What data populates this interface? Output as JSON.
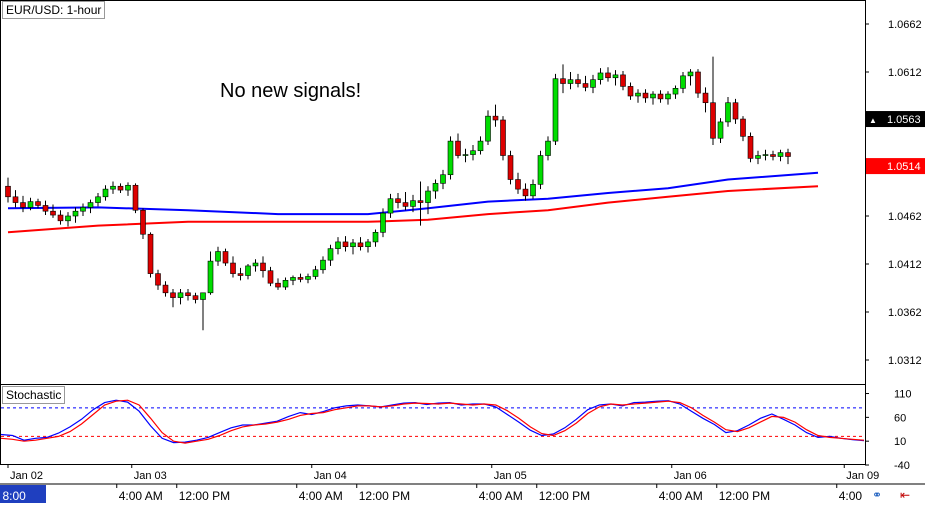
{
  "chart_data": [
    {
      "type": "candlestick",
      "title": "EUR/USD: 1-hour",
      "annotation": "No new signals!",
      "ylim": [
        1.0287,
        1.0687
      ],
      "y_ticks": [
        "1.0662",
        "1.0612",
        "1.0563",
        "1.0514",
        "1.0462",
        "1.0412",
        "1.0362",
        "1.0312"
      ],
      "price_tags": [
        {
          "label": "1.0563",
          "value": 1.0563,
          "color": "#000000"
        },
        {
          "label": "1.0514",
          "value": 1.0514,
          "color": "#ff0000"
        }
      ],
      "up_color": "#00dd00",
      "down_color": "#dd0000",
      "candles": [
        [
          1.0493,
          1.0502,
          1.0476,
          1.0482
        ],
        [
          1.0482,
          1.0489,
          1.0471,
          1.0476
        ],
        [
          1.0476,
          1.0483,
          1.0466,
          1.0471
        ],
        [
          1.0471,
          1.0481,
          1.0468,
          1.0477
        ],
        [
          1.0477,
          1.048,
          1.047,
          1.0473
        ],
        [
          1.0473,
          1.0478,
          1.0463,
          1.0467
        ],
        [
          1.0467,
          1.0474,
          1.046,
          1.0463
        ],
        [
          1.0463,
          1.0468,
          1.0453,
          1.0457
        ],
        [
          1.0457,
          1.0466,
          1.0451,
          1.0462
        ],
        [
          1.0462,
          1.0471,
          1.0455,
          1.0467
        ],
        [
          1.0467,
          1.0475,
          1.0462,
          1.0471
        ],
        [
          1.0471,
          1.0479,
          1.0465,
          1.0476
        ],
        [
          1.0476,
          1.0486,
          1.0472,
          1.0482
        ],
        [
          1.0482,
          1.0494,
          1.0478,
          1.049
        ],
        [
          1.049,
          1.0498,
          1.0485,
          1.0493
        ],
        [
          1.0493,
          1.0496,
          1.0486,
          1.0489
        ],
        [
          1.0489,
          1.0497,
          1.0483,
          1.0494
        ],
        [
          1.0494,
          1.0496,
          1.0465,
          1.0468
        ],
        [
          1.0468,
          1.047,
          1.0438,
          1.0443
        ],
        [
          1.0443,
          1.0445,
          1.0398,
          1.0402
        ],
        [
          1.0402,
          1.0406,
          1.0385,
          1.039
        ],
        [
          1.039,
          1.0394,
          1.0378,
          1.0382
        ],
        [
          1.0382,
          1.0386,
          1.0367,
          1.0377
        ],
        [
          1.0377,
          1.0386,
          1.037,
          1.0382
        ],
        [
          1.0382,
          1.0386,
          1.0374,
          1.0379
        ],
        [
          1.0379,
          1.0382,
          1.0371,
          1.0375
        ],
        [
          1.0375,
          1.0379,
          1.0343,
          1.0382
        ],
        [
          1.0382,
          1.0425,
          1.038,
          1.0415
        ],
        [
          1.0415,
          1.043,
          1.041,
          1.0425
        ],
        [
          1.0425,
          1.0428,
          1.041,
          1.0413
        ],
        [
          1.0413,
          1.042,
          1.0398,
          1.0402
        ],
        [
          1.0402,
          1.0408,
          1.0395,
          1.04
        ],
        [
          1.04,
          1.0412,
          1.0396,
          1.041
        ],
        [
          1.041,
          1.0417,
          1.0404,
          1.0413
        ],
        [
          1.0413,
          1.042,
          1.0398,
          1.0405
        ],
        [
          1.0405,
          1.0409,
          1.0389,
          1.0392
        ],
        [
          1.0392,
          1.0397,
          1.0385,
          1.0388
        ],
        [
          1.0388,
          1.0398,
          1.0385,
          1.0395
        ],
        [
          1.0395,
          1.04,
          1.039,
          1.0398
        ],
        [
          1.0398,
          1.0402,
          1.0393,
          1.0396
        ],
        [
          1.0396,
          1.0402,
          1.0392,
          1.0399
        ],
        [
          1.0399,
          1.041,
          1.0396,
          1.0406
        ],
        [
          1.0406,
          1.042,
          1.0402,
          1.0416
        ],
        [
          1.0416,
          1.0432,
          1.041,
          1.0428
        ],
        [
          1.0428,
          1.044,
          1.0422,
          1.0435
        ],
        [
          1.0435,
          1.0441,
          1.0425,
          1.043
        ],
        [
          1.043,
          1.0438,
          1.0422,
          1.0434
        ],
        [
          1.0434,
          1.044,
          1.0426,
          1.043
        ],
        [
          1.043,
          1.0438,
          1.0424,
          1.0435
        ],
        [
          1.0435,
          1.0448,
          1.043,
          1.0445
        ],
        [
          1.0445,
          1.047,
          1.044,
          1.0465
        ],
        [
          1.0465,
          1.0485,
          1.046,
          1.048
        ],
        [
          1.048,
          1.0486,
          1.047,
          1.0476
        ],
        [
          1.0476,
          1.0487,
          1.0468,
          1.0472
        ],
        [
          1.0472,
          1.0484,
          1.0466,
          1.0478
        ],
        [
          1.0478,
          1.0498,
          1.0452,
          1.0476
        ],
        [
          1.0476,
          1.0493,
          1.0464,
          1.0488
        ],
        [
          1.0488,
          1.05,
          1.048,
          1.0496
        ],
        [
          1.0496,
          1.051,
          1.049,
          1.0505
        ],
        [
          1.0505,
          1.0545,
          1.05,
          1.054
        ],
        [
          1.054,
          1.0548,
          1.0522,
          1.0525
        ],
        [
          1.0525,
          1.0532,
          1.0518,
          1.0526
        ],
        [
          1.0526,
          1.0536,
          1.052,
          1.053
        ],
        [
          1.053,
          1.0545,
          1.0526,
          1.054
        ],
        [
          1.054,
          1.0572,
          1.0536,
          1.0566
        ],
        [
          1.0566,
          1.0578,
          1.0555,
          1.0562
        ],
        [
          1.0562,
          1.0566,
          1.052,
          1.0525
        ],
        [
          1.0525,
          1.053,
          1.0495,
          1.05
        ],
        [
          1.05,
          1.0507,
          1.0485,
          1.049
        ],
        [
          1.049,
          1.0496,
          1.0478,
          1.0483
        ],
        [
          1.0483,
          1.05,
          1.048,
          1.0495
        ],
        [
          1.0495,
          1.053,
          1.049,
          1.0525
        ],
        [
          1.0525,
          1.0545,
          1.052,
          1.054
        ],
        [
          1.054,
          1.061,
          1.0536,
          1.0605
        ],
        [
          1.0605,
          1.062,
          1.059,
          1.06
        ],
        [
          1.06,
          1.0612,
          1.0594,
          1.0604
        ],
        [
          1.0604,
          1.061,
          1.0596,
          1.06
        ],
        [
          1.06,
          1.0608,
          1.0592,
          1.0596
        ],
        [
          1.0596,
          1.0609,
          1.059,
          1.0604
        ],
        [
          1.0604,
          1.0616,
          1.0599,
          1.0611
        ],
        [
          1.0611,
          1.0617,
          1.0602,
          1.0606
        ],
        [
          1.0606,
          1.0614,
          1.0598,
          1.0609
        ],
        [
          1.0609,
          1.0613,
          1.0593,
          1.0597
        ],
        [
          1.0597,
          1.0601,
          1.0583,
          1.0587
        ],
        [
          1.0587,
          1.0594,
          1.058,
          1.059
        ],
        [
          1.059,
          1.0594,
          1.058,
          1.0585
        ],
        [
          1.0585,
          1.0592,
          1.0578,
          1.0589
        ],
        [
          1.0589,
          1.0593,
          1.058,
          1.0584
        ],
        [
          1.0584,
          1.0592,
          1.0578,
          1.0589
        ],
        [
          1.0589,
          1.0598,
          1.0584,
          1.0595
        ],
        [
          1.0595,
          1.0612,
          1.059,
          1.0608
        ],
        [
          1.0608,
          1.0615,
          1.0598,
          1.0612
        ],
        [
          1.0612,
          1.0615,
          1.0585,
          1.059
        ],
        [
          1.059,
          1.0596,
          1.057,
          1.058
        ],
        [
          1.058,
          1.0628,
          1.0536,
          1.0543
        ],
        [
          1.0543,
          1.0564,
          1.0538,
          1.056
        ],
        [
          1.056,
          1.0586,
          1.0555,
          1.058
        ],
        [
          1.058,
          1.0584,
          1.0558,
          1.0563
        ],
        [
          1.0563,
          1.0566,
          1.054,
          1.0545
        ],
        [
          1.0545,
          1.0549,
          1.0518,
          1.0522
        ],
        [
          1.0522,
          1.053,
          1.0516,
          1.0525
        ],
        [
          1.0525,
          1.0531,
          1.052,
          1.0526
        ],
        [
          1.0526,
          1.053,
          1.052,
          1.0524
        ],
        [
          1.0524,
          1.0531,
          1.0519,
          1.0528
        ],
        [
          1.0528,
          1.0532,
          1.0516,
          1.0524
        ]
      ],
      "moving_averages": [
        {
          "color": "#0000ff",
          "points": [
            [
              0,
              1.047
            ],
            [
              12,
              1.0471
            ],
            [
              24,
              1.0468
            ],
            [
              36,
              1.0464
            ],
            [
              48,
              1.0464
            ],
            [
              56,
              1.047
            ],
            [
              64,
              1.0477
            ],
            [
              72,
              1.048
            ],
            [
              80,
              1.0486
            ],
            [
              88,
              1.0491
            ],
            [
              96,
              1.05
            ],
            [
              108,
              1.0507
            ]
          ]
        },
        {
          "color": "#ff0000",
          "points": [
            [
              0,
              1.0445
            ],
            [
              12,
              1.0452
            ],
            [
              24,
              1.0456
            ],
            [
              36,
              1.0456
            ],
            [
              48,
              1.0456
            ],
            [
              56,
              1.0458
            ],
            [
              64,
              1.0464
            ],
            [
              72,
              1.0468
            ],
            [
              80,
              1.0476
            ],
            [
              88,
              1.0482
            ],
            [
              96,
              1.0488
            ],
            [
              108,
              1.0493
            ]
          ]
        }
      ]
    },
    {
      "type": "line",
      "title": "Stochastic",
      "ylim": [
        -40,
        130
      ],
      "y_ticks": [
        "110",
        "60",
        "10",
        "-40"
      ],
      "levels": [
        80,
        20
      ],
      "series": [
        {
          "color": "#0000ff",
          "values": [
            24,
            22,
            12,
            16,
            18,
            27,
            40,
            56,
            76,
            91,
            96,
            92,
            73,
            42,
            16,
            7,
            8,
            12,
            18,
            28,
            38,
            44,
            44,
            48,
            52,
            62,
            70,
            66,
            72,
            80,
            84,
            86,
            84,
            82,
            86,
            90,
            91,
            87,
            90,
            91,
            86,
            88,
            88,
            82,
            66,
            50,
            33,
            22,
            25,
            38,
            56,
            76,
            86,
            88,
            84,
            91,
            92,
            94,
            95,
            88,
            73,
            58,
            45,
            28,
            32,
            44,
            58,
            67,
            56,
            44,
            28,
            18,
            20,
            16,
            13,
            11
          ]
        },
        {
          "color": "#ff0000",
          "values": [
            16,
            14,
            10,
            12,
            16,
            20,
            30,
            46,
            66,
            86,
            94,
            96,
            86,
            58,
            28,
            10,
            6,
            10,
            14,
            22,
            32,
            40,
            44,
            46,
            50,
            56,
            64,
            68,
            70,
            76,
            80,
            84,
            84,
            82,
            84,
            88,
            90,
            89,
            88,
            90,
            88,
            86,
            88,
            86,
            74,
            58,
            40,
            26,
            22,
            32,
            48,
            68,
            82,
            88,
            86,
            88,
            90,
            92,
            94,
            91,
            80,
            64,
            50,
            34,
            30,
            38,
            50,
            62,
            60,
            50,
            34,
            22,
            18,
            16,
            14,
            12
          ]
        }
      ]
    }
  ],
  "x_axis": {
    "date_labels": [
      {
        "text": "Jan 02",
        "pos": 0
      },
      {
        "text": "Jan 03",
        "pos": 16.5
      },
      {
        "text": "Jan 04",
        "pos": 40.5
      },
      {
        "text": "Jan 05",
        "pos": 64.5
      },
      {
        "text": "Jan 06",
        "pos": 88.5
      },
      {
        "text": "Jan 09",
        "pos": 111.5
      }
    ],
    "time_labels": [
      {
        "text": "8:00",
        "pos": -1,
        "highlight": true
      },
      {
        "text": "4:00 AM",
        "pos": 14.5
      },
      {
        "text": "12:00 PM",
        "pos": 22.5
      },
      {
        "text": "4:00 AM",
        "pos": 38.5
      },
      {
        "text": "12:00 PM",
        "pos": 46.5
      },
      {
        "text": "4:00 AM",
        "pos": 62.5
      },
      {
        "text": "12:00 PM",
        "pos": 70.5
      },
      {
        "text": "4:00 AM",
        "pos": 86.5
      },
      {
        "text": "12:00 PM",
        "pos": 94.5
      },
      {
        "text": "4:00",
        "pos": 110.5
      }
    ]
  },
  "icons": [
    "link-icon",
    "arrow-left-icon"
  ]
}
